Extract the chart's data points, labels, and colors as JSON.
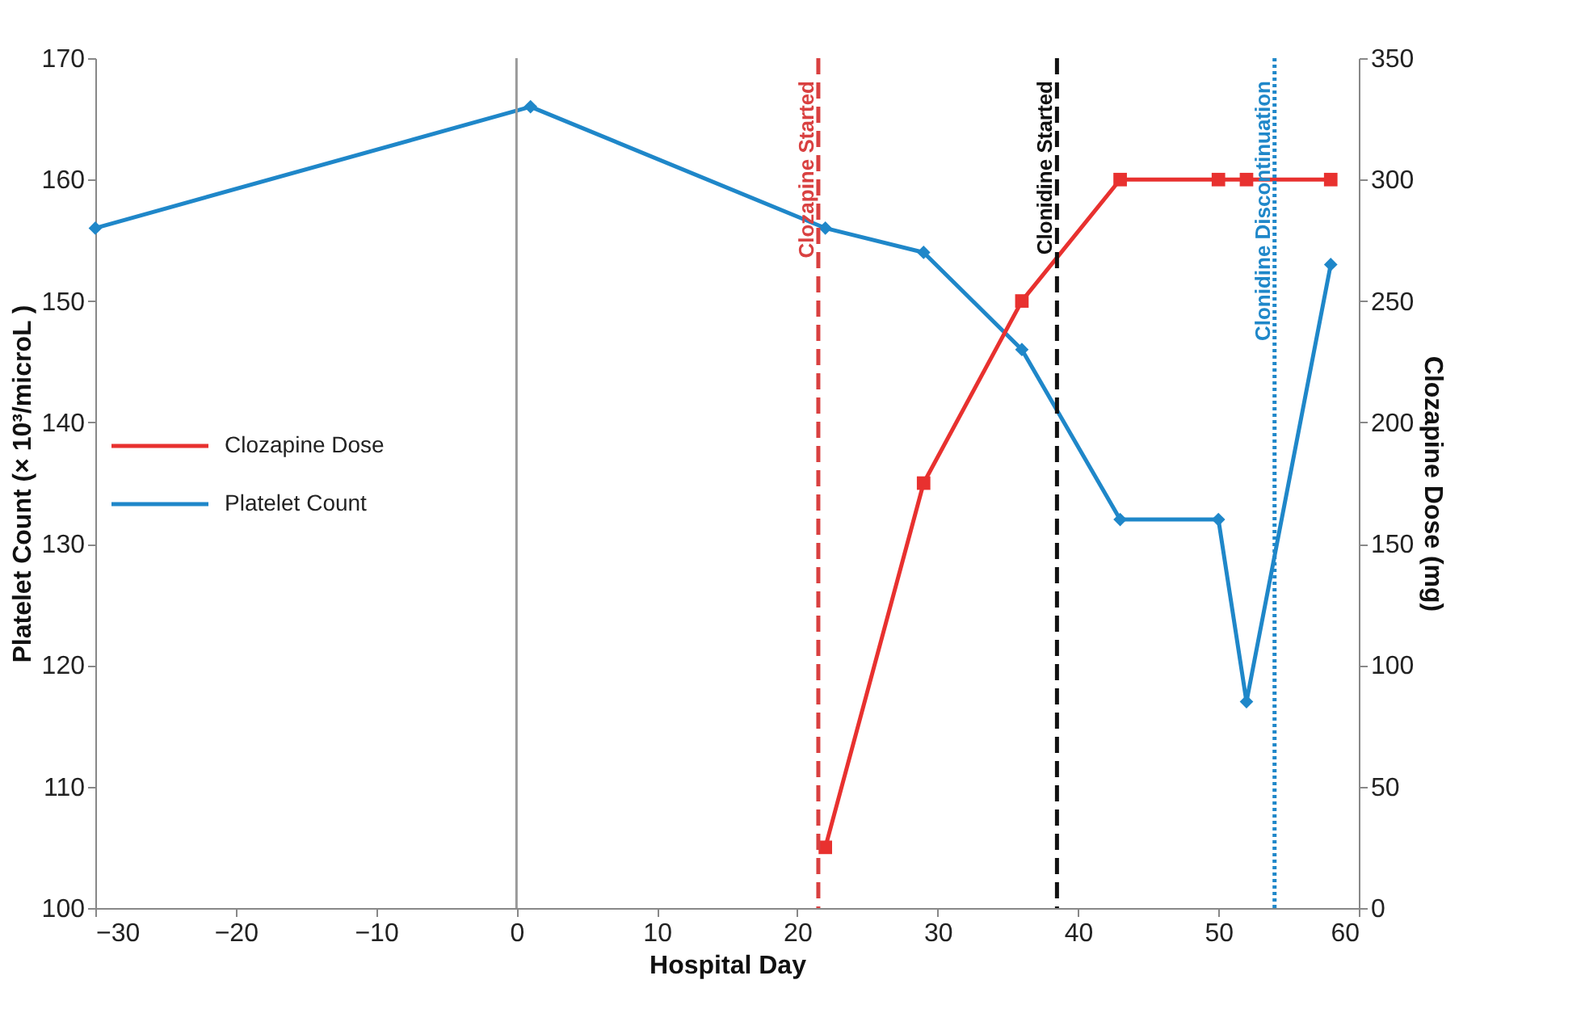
{
  "chart_data": {
    "type": "line",
    "xlabel": "Hospital Day",
    "ylabel": "Platelet Count (× 10³/microL )",
    "y2label": "Clozapine Dose (mg)",
    "xlim": [
      -30,
      60
    ],
    "xticks": [
      -30,
      -20,
      -10,
      0,
      10,
      20,
      30,
      40,
      50,
      60
    ],
    "ylim": [
      100,
      170
    ],
    "yticks": [
      100,
      110,
      120,
      130,
      140,
      150,
      160,
      170
    ],
    "y2lim": [
      0,
      350
    ],
    "y2ticks": [
      0,
      50,
      100,
      150,
      200,
      250,
      300,
      350
    ],
    "series": [
      {
        "name": "Clozapine Dose",
        "color": "#e8312f",
        "axis": "y2",
        "marker": "square",
        "x": [
          22,
          29,
          36,
          43,
          50,
          52,
          58
        ],
        "values": [
          25,
          175,
          250,
          300,
          300,
          300,
          300
        ]
      },
      {
        "name": "Platelet Count",
        "color": "#1f87c9",
        "marker": "diamond",
        "x": [
          -30,
          1,
          22,
          29,
          36,
          43,
          50,
          52,
          58
        ],
        "values": [
          156,
          166,
          156,
          154,
          146,
          132,
          132,
          117,
          153
        ]
      }
    ],
    "ref_lines": [
      {
        "axis": "x",
        "value": 0,
        "color": "#999999",
        "line_style": "solid"
      },
      {
        "axis": "x",
        "value": 21.5,
        "label": "Clozapine Started",
        "color": "#d94040",
        "line_style": "dashed"
      },
      {
        "axis": "x",
        "value": 38.5,
        "label": "Clonidine Started",
        "color": "#111111",
        "line_style": "dashed"
      },
      {
        "axis": "x",
        "value": 54,
        "label": "Clonidine Discontinuation",
        "color": "#1f87c9",
        "line_style": "dotted"
      }
    ],
    "line_style": "solid",
    "grid": false,
    "legend": "left"
  }
}
